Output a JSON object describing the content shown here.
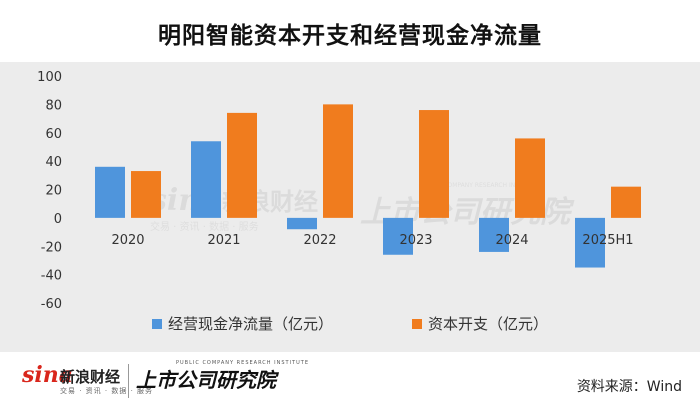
{
  "title": "明阳智能资本开支和经营现金净流量",
  "chart_data": {
    "type": "bar",
    "categories": [
      "2020",
      "2021",
      "2022",
      "2023",
      "2024",
      "2025H1"
    ],
    "series": [
      {
        "name": "经营现金净流量（亿元）",
        "values": [
          36,
          54,
          -8,
          -26,
          -24,
          -35
        ],
        "color": "#4f95dc"
      },
      {
        "name": "资本开支（亿元）",
        "values": [
          33,
          74,
          80,
          76,
          56,
          22
        ],
        "color": "#f07c1e"
      }
    ],
    "ylim": [
      -60,
      100
    ],
    "yticks": [
      100,
      80,
      60,
      40,
      20,
      0,
      -20,
      -40,
      -60
    ],
    "legend_position": "bottom"
  },
  "watermark": {
    "sina": "sina",
    "sina_cn": "新浪财经",
    "sina_sub": "交易 · 资讯 · 数据 · 服务",
    "research": "上市公司研究院",
    "research_en": "PUBLIC COMPANY RESEARCH INSTITUTE"
  },
  "footer": {
    "sina": "sina",
    "sina_cn": "新浪财经",
    "sina_sub": "交易 · 资讯 · 数据 · 服务",
    "research": "上市公司研究院",
    "research_en": "PUBLIC COMPANY RESEARCH INSTITUTE",
    "source": "资料来源：Wind"
  }
}
